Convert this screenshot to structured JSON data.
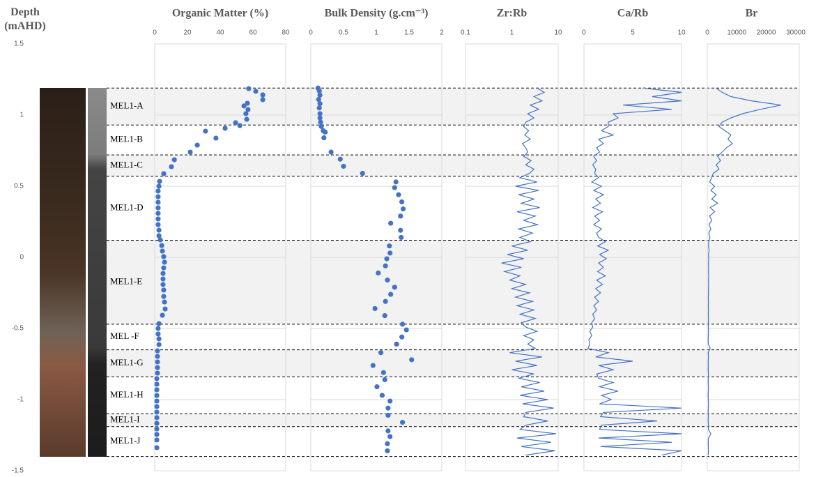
{
  "depth_axis": {
    "label": "Depth (mAHD)",
    "ylim": [
      -1.5,
      1.5
    ],
    "yticks": [
      1.5,
      1,
      0.5,
      0,
      -0.5,
      -1,
      -1.5
    ]
  },
  "zones": [
    {
      "label": "MEL1-A",
      "top": 1.19,
      "bottom": 0.93,
      "shaded": true
    },
    {
      "label": "MEL1-B",
      "top": 0.93,
      "bottom": 0.72,
      "shaded": false
    },
    {
      "label": "MEL1-C",
      "top": 0.72,
      "bottom": 0.57,
      "shaded": true
    },
    {
      "label": "MEL1-D",
      "top": 0.57,
      "bottom": 0.12,
      "shaded": false
    },
    {
      "label": "MEL1-E",
      "top": 0.12,
      "bottom": -0.47,
      "shaded": true
    },
    {
      "label": "MEL -F",
      "top": -0.47,
      "bottom": -0.65,
      "shaded": false
    },
    {
      "label": "MEL1-G",
      "top": -0.65,
      "bottom": -0.84,
      "shaded": true
    },
    {
      "label": "MEL1-H",
      "top": -0.84,
      "bottom": -1.1,
      "shaded": false
    },
    {
      "label": "MEL1-I",
      "top": -1.1,
      "bottom": -1.19,
      "shaded": true
    },
    {
      "label": "MEL1-J",
      "top": -1.19,
      "bottom": -1.4,
      "shaded": false
    }
  ],
  "chart_data": [
    {
      "type": "scatter",
      "title": "Organic Matter (%)",
      "xlim": [
        0,
        80
      ],
      "xticks": [
        0,
        20,
        40,
        60,
        80
      ],
      "xscale": "linear",
      "color": "#4472c4",
      "values": [
        57.4,
        61.7,
        66,
        66,
        56.6,
        54.5,
        57,
        55.7,
        56.2,
        49.4,
        52,
        43,
        31,
        37.4,
        26,
        21.7,
        12,
        10.2,
        5.5,
        3.0,
        2.6,
        2.1,
        2.1,
        2.1,
        2.1,
        2.1,
        2.1,
        2.1,
        2.6,
        2.6,
        3.4,
        4.3,
        4.7,
        5.5,
        6.0,
        5.5,
        5.1,
        5.1,
        5.1,
        5.5,
        5.5,
        6.0,
        6.4,
        4.7,
        2.6,
        2.1,
        2.1,
        2.6,
        2.6,
        1.7,
        1.7,
        1.7,
        1.7,
        1.7,
        1.3,
        1.3,
        1.3,
        1.3,
        1.3,
        1.3,
        1.3,
        1.3,
        1.3,
        1.3,
        1.3,
        1.3,
        1.3
      ],
      "y": [
        1.186,
        1.167,
        1.142,
        1.108,
        1.083,
        1.064,
        1.039,
        1.01,
        0.97,
        0.946,
        0.926,
        0.907,
        0.887,
        0.838,
        0.789,
        0.74,
        0.686,
        0.637,
        0.588,
        0.534,
        0.5,
        0.466,
        0.426,
        0.387,
        0.348,
        0.309,
        0.27,
        0.23,
        0.191,
        0.152,
        0.123,
        0.083,
        0.044,
        0.005,
        -0.034,
        -0.074,
        -0.113,
        -0.152,
        -0.191,
        -0.23,
        -0.275,
        -0.314,
        -0.363,
        -0.407,
        -0.466,
        -0.5,
        -0.539,
        -0.573,
        -0.613,
        -0.657,
        -0.696,
        -0.735,
        -0.775,
        -0.814,
        -0.853,
        -0.892,
        -0.931,
        -0.971,
        -1.01,
        -1.049,
        -1.088,
        -1.127,
        -1.167,
        -1.206,
        -1.245,
        -1.284,
        -1.338
      ]
    },
    {
      "type": "scatter",
      "title": "Bulk Density (g.cm⁻³)",
      "xlim": [
        0,
        2
      ],
      "xticks": [
        0,
        0.5,
        1,
        1.5,
        2
      ],
      "xscale": "linear",
      "color": "#4472c4",
      "values": [
        0.11,
        0.13,
        0.14,
        0.12,
        0.14,
        0.13,
        0.14,
        0.14,
        0.15,
        0.16,
        0.19,
        0.22,
        0.2,
        0.31,
        0.45,
        0.5,
        0.79,
        1.3,
        1.28,
        1.34,
        1.39,
        1.41,
        1.37,
        1.22,
        1.37,
        1.38,
        1.2,
        1.21,
        1.16,
        1.14,
        1.03,
        1.17,
        1.28,
        1.22,
        1.14,
        0.98,
        1.13,
        1.4,
        1.46,
        1.39,
        1.31,
        1.07,
        1.54,
        0.95,
        1.11,
        1.13,
        1.01,
        1.09,
        1.21,
        1.18,
        1.18,
        1.4,
        1.18,
        1.21,
        1.17,
        1.17
      ],
      "y": [
        1.19,
        1.17,
        1.14,
        1.11,
        1.08,
        1.05,
        1.01,
        0.98,
        0.95,
        0.92,
        0.89,
        0.88,
        0.84,
        0.74,
        0.69,
        0.64,
        0.59,
        0.53,
        0.49,
        0.44,
        0.39,
        0.34,
        0.29,
        0.24,
        0.19,
        0.14,
        0.08,
        0.03,
        -0.01,
        -0.06,
        -0.11,
        -0.16,
        -0.21,
        -0.26,
        -0.31,
        -0.36,
        -0.41,
        -0.47,
        -0.51,
        -0.56,
        -0.61,
        -0.67,
        -0.72,
        -0.76,
        -0.81,
        -0.86,
        -0.91,
        -0.97,
        -1.01,
        -1.06,
        -1.11,
        -1.16,
        -1.22,
        -1.26,
        -1.31,
        -1.36
      ]
    },
    {
      "type": "line",
      "title": "Zr:Rb",
      "xlim": [
        0.1,
        10
      ],
      "xticks": [
        0.1,
        1,
        10
      ],
      "xscale": "log",
      "color": "#4472c4",
      "values": [
        3.5,
        5.0,
        3.0,
        4.5,
        2.5,
        3.8,
        2.2,
        3.0,
        2.0,
        1.8,
        2.3,
        1.9,
        2.5,
        1.7,
        2.0,
        2.2,
        1.8,
        2.6,
        2.0,
        3.0,
        2.4,
        1.5,
        3.5,
        1.2,
        3.8,
        1.4,
        3.0,
        1.6,
        4.0,
        1.3,
        3.2,
        1.8,
        3.6,
        1.4,
        2.8,
        1.5,
        2.5,
        1.0,
        2.2,
        0.8,
        1.8,
        0.6,
        1.6,
        0.7,
        1.5,
        0.9,
        2.0,
        1.0,
        2.4,
        1.2,
        2.8,
        1.3,
        3.0,
        1.5,
        3.2,
        1.6,
        2.0,
        3.5,
        1.8,
        3.0,
        2.2,
        3.2,
        0.9,
        4.5,
        1.2,
        3.5,
        1.0,
        3.0,
        1.4,
        4.0,
        1.6,
        5.0,
        1.5,
        6.0,
        1.7,
        8.0,
        2.0,
        1.8,
        6.0,
        2.0,
        1.5,
        9.0,
        1.3,
        7.0,
        1.6,
        8.5,
        2.0
      ],
      "y": [
        1.19,
        1.16,
        1.13,
        1.1,
        1.07,
        1.04,
        1.01,
        0.98,
        0.95,
        0.92,
        0.89,
        0.86,
        0.83,
        0.8,
        0.77,
        0.74,
        0.71,
        0.68,
        0.65,
        0.62,
        0.59,
        0.56,
        0.53,
        0.5,
        0.47,
        0.44,
        0.41,
        0.38,
        0.35,
        0.32,
        0.29,
        0.26,
        0.23,
        0.2,
        0.17,
        0.14,
        0.11,
        0.08,
        0.05,
        0.02,
        -0.01,
        -0.04,
        -0.07,
        -0.1,
        -0.13,
        -0.16,
        -0.19,
        -0.22,
        -0.25,
        -0.28,
        -0.31,
        -0.34,
        -0.37,
        -0.4,
        -0.43,
        -0.46,
        -0.49,
        -0.52,
        -0.55,
        -0.58,
        -0.61,
        -0.64,
        -0.67,
        -0.7,
        -0.73,
        -0.76,
        -0.79,
        -0.82,
        -0.85,
        -0.88,
        -0.91,
        -0.94,
        -0.97,
        -1.0,
        -1.03,
        -1.06,
        -1.09,
        -1.12,
        -1.15,
        -1.18,
        -1.21,
        -1.24,
        -1.27,
        -1.3,
        -1.33,
        -1.36,
        -1.39
      ]
    },
    {
      "type": "line",
      "title": "Ca/Rb",
      "xlim": [
        0,
        10
      ],
      "xticks": [
        0,
        5,
        10
      ],
      "xscale": "linear",
      "color": "#4472c4",
      "values": [
        6,
        10,
        7,
        10,
        4,
        9,
        3,
        3.5,
        2.5,
        2.5,
        1.8,
        3.0,
        1.5,
        2.0,
        1.3,
        1.6,
        1.0,
        1.3,
        0.9,
        1.2,
        1.1,
        1.5,
        0.8,
        1.8,
        1.0,
        2.0,
        1.2,
        1.7,
        0.9,
        1.9,
        1.1,
        1.6,
        1.0,
        1.8,
        1.3,
        1.5,
        2.2,
        1.4,
        2.5,
        1.6,
        2.3,
        1.5,
        2.0,
        1.4,
        2.2,
        1.3,
        1.9,
        1.2,
        1.7,
        1.1,
        1.5,
        1.0,
        1.3,
        0.9,
        1.1,
        0.8,
        0.9,
        0.6,
        0.8,
        0.5,
        0.6,
        0.4,
        2.5,
        1.2,
        5.0,
        1.5,
        3.0,
        1.3,
        1.5,
        3.0,
        1.6,
        3.5,
        1.8,
        2.8,
        1.6,
        10,
        2.0,
        1.7,
        7.5,
        1.8,
        1.6,
        10,
        1.5,
        9.0,
        1.7,
        10,
        8.0
      ],
      "y": [
        1.19,
        1.16,
        1.13,
        1.1,
        1.07,
        1.04,
        1.01,
        0.98,
        0.95,
        0.92,
        0.89,
        0.86,
        0.83,
        0.8,
        0.77,
        0.74,
        0.71,
        0.68,
        0.65,
        0.62,
        0.59,
        0.56,
        0.53,
        0.5,
        0.47,
        0.44,
        0.41,
        0.38,
        0.35,
        0.32,
        0.29,
        0.26,
        0.23,
        0.2,
        0.17,
        0.14,
        0.11,
        0.08,
        0.05,
        0.02,
        -0.01,
        -0.04,
        -0.07,
        -0.1,
        -0.13,
        -0.16,
        -0.19,
        -0.22,
        -0.25,
        -0.28,
        -0.31,
        -0.34,
        -0.37,
        -0.4,
        -0.43,
        -0.46,
        -0.49,
        -0.52,
        -0.55,
        -0.58,
        -0.61,
        -0.64,
        -0.67,
        -0.7,
        -0.73,
        -0.76,
        -0.79,
        -0.82,
        -0.85,
        -0.88,
        -0.91,
        -0.94,
        -0.97,
        -1.0,
        -1.03,
        -1.06,
        -1.09,
        -1.12,
        -1.15,
        -1.18,
        -1.21,
        -1.24,
        -1.27,
        -1.3,
        -1.33,
        -1.36,
        -1.39
      ]
    },
    {
      "type": "line",
      "title": "Br",
      "xlim": [
        0,
        30000
      ],
      "xticks": [
        0,
        10000,
        20000,
        30000
      ],
      "xscale": "linear",
      "color": "#4472c4",
      "values": [
        3000,
        5000,
        8000,
        15000,
        25000,
        18000,
        12000,
        8000,
        5000,
        4000,
        6000,
        8000,
        7000,
        8500,
        6500,
        5000,
        3500,
        4500,
        3000,
        4000,
        2000,
        1500,
        800,
        2500,
        1200,
        3000,
        1500,
        3500,
        1000,
        2500,
        800,
        1500,
        600,
        1200,
        500,
        900,
        500,
        400,
        600,
        400,
        500,
        400,
        450,
        400,
        500,
        400,
        450,
        400,
        400,
        350,
        400,
        350,
        400,
        350,
        400,
        350,
        350,
        400,
        350,
        300,
        350,
        1000,
        300,
        400,
        300,
        350,
        300,
        400,
        350,
        300,
        400,
        350,
        300,
        350,
        400,
        350,
        300,
        350,
        300,
        400,
        350,
        1200,
        400,
        300,
        350,
        400,
        300
      ],
      "y": [
        1.19,
        1.16,
        1.13,
        1.1,
        1.07,
        1.04,
        1.01,
        0.98,
        0.95,
        0.92,
        0.89,
        0.86,
        0.83,
        0.8,
        0.77,
        0.74,
        0.71,
        0.68,
        0.65,
        0.62,
        0.59,
        0.56,
        0.53,
        0.5,
        0.47,
        0.44,
        0.41,
        0.38,
        0.35,
        0.32,
        0.29,
        0.26,
        0.23,
        0.2,
        0.17,
        0.14,
        0.11,
        0.08,
        0.05,
        0.02,
        -0.01,
        -0.04,
        -0.07,
        -0.1,
        -0.13,
        -0.16,
        -0.19,
        -0.22,
        -0.25,
        -0.28,
        -0.31,
        -0.34,
        -0.37,
        -0.4,
        -0.43,
        -0.46,
        -0.49,
        -0.52,
        -0.55,
        -0.58,
        -0.61,
        -0.64,
        -0.67,
        -0.7,
        -0.73,
        -0.76,
        -0.79,
        -0.82,
        -0.85,
        -0.88,
        -0.91,
        -0.94,
        -0.97,
        -1.0,
        -1.03,
        -1.06,
        -1.09,
        -1.12,
        -1.15,
        -1.18,
        -1.21,
        -1.24,
        -1.27,
        -1.3,
        -1.33,
        -1.36,
        -1.39
      ]
    }
  ]
}
